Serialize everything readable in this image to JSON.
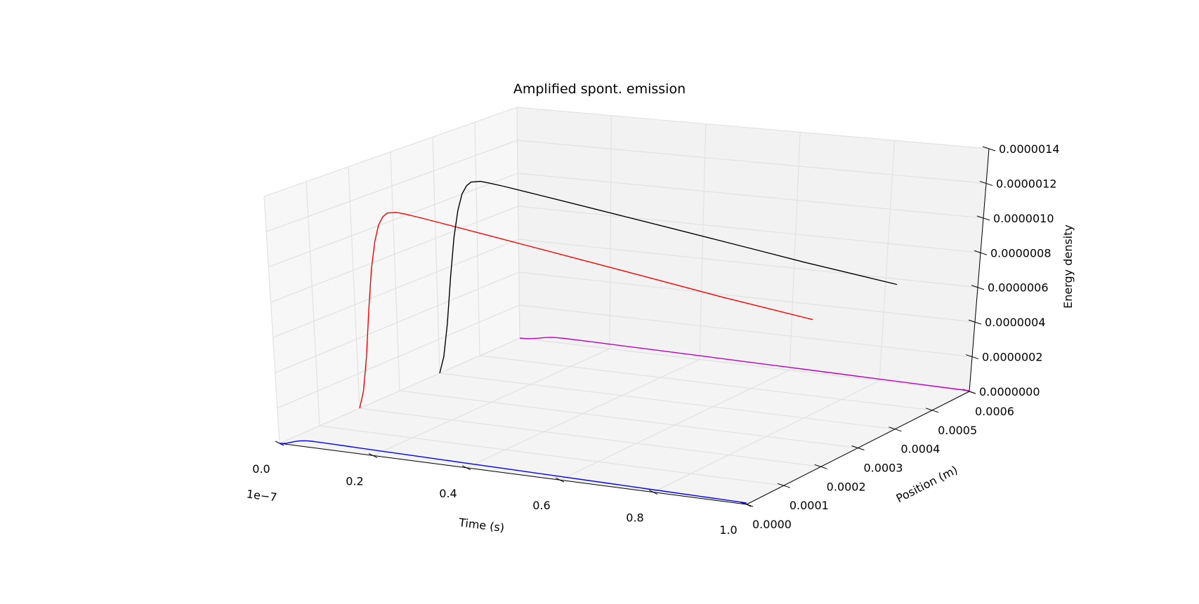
{
  "chart_data": {
    "type": "line",
    "projection": "3d",
    "title": "Amplified spont. emission",
    "xlabel": "Time (s)",
    "ylabel": "Position (m)",
    "zlabel": "Energy density",
    "x_offset_label": "1e−7",
    "x_ticks": [
      "0.0",
      "0.2",
      "0.4",
      "0.6",
      "0.8",
      "1.0"
    ],
    "y_ticks": [
      "0.0000",
      "0.0001",
      "0.0002",
      "0.0003",
      "0.0004",
      "0.0005",
      "0.0006"
    ],
    "z_ticks": [
      "0.0000000",
      "0.0000002",
      "0.0000004",
      "0.0000006",
      "0.0000008",
      "0.0000010",
      "0.0000012",
      "0.0000014"
    ],
    "xlim": [
      0,
      1e-07
    ],
    "ylim": [
      0,
      0.0006
    ],
    "zlim": [
      0,
      1.4e-06
    ],
    "grid": true,
    "series": [
      {
        "color": "#0000ff",
        "y": 0.0,
        "x": [
          0,
          5e-10,
          1e-09,
          1.5e-09,
          2e-09,
          3e-09,
          4e-09,
          5e-09,
          6e-09,
          7e-09,
          8e-09,
          1e-08,
          1.5e-08,
          2e-08,
          3e-08,
          4e-08,
          5e-08,
          6e-08,
          7e-08,
          8e-08,
          9e-08,
          1e-07
        ],
        "z": [
          0.0,
          1e-09,
          3e-09,
          6e-09,
          1e-08,
          1.9e-08,
          2.7e-08,
          3.2e-08,
          3.5e-08,
          3.6e-08,
          3.6e-08,
          3.55e-08,
          3.4e-08,
          3.2e-08,
          2.9e-08,
          2.6e-08,
          2.3e-08,
          2e-08,
          1.7e-08,
          1.4e-08,
          1.1e-08,
          8e-09
        ]
      },
      {
        "color": "#ff0000",
        "y": 0.0002,
        "x": [
          0,
          1e-09,
          2e-09,
          3e-09,
          4e-09,
          5e-09,
          6e-09,
          7e-09,
          8e-09,
          1e-08,
          1.2e-08,
          1.5e-08,
          2e-08,
          3e-08,
          4e-08,
          5e-08,
          6e-08,
          7e-08,
          8e-08,
          9e-08,
          1e-07
        ],
        "z": [
          0.0,
          1e-07,
          3e-07,
          5.8e-07,
          8.2e-07,
          9.8e-07,
          1.08e-06,
          1.13e-06,
          1.155e-06,
          1.165e-06,
          1.16e-06,
          1.15e-06,
          1.13e-06,
          1.09e-06,
          1.05e-06,
          1.01e-06,
          9.7e-07,
          9.3e-07,
          8.9e-07,
          8.55e-07,
          8.2e-07
        ]
      },
      {
        "color": "#000000",
        "y": 0.0004,
        "x": [
          0,
          1e-09,
          2e-09,
          3e-09,
          4e-09,
          5e-09,
          6e-09,
          7e-09,
          8e-09,
          1e-08,
          1.2e-08,
          1.5e-08,
          2e-08,
          3e-08,
          4e-08,
          5e-08,
          6e-08,
          7e-08,
          8e-08,
          9e-08,
          1e-07
        ],
        "z": [
          0.0,
          1e-07,
          3e-07,
          5.8e-07,
          8.2e-07,
          9.8e-07,
          1.08e-06,
          1.13e-06,
          1.155e-06,
          1.165e-06,
          1.16e-06,
          1.15e-06,
          1.13e-06,
          1.09e-06,
          1.05e-06,
          1.01e-06,
          9.7e-07,
          9.3e-07,
          8.9e-07,
          8.55e-07,
          8.2e-07
        ]
      },
      {
        "color": "#bf00bf",
        "y": 0.0006,
        "x": [
          0,
          1e-09,
          2e-09,
          3e-09,
          4e-09,
          5e-09,
          6e-09,
          7e-09,
          8e-09,
          1e-08,
          1.5e-08,
          2e-08,
          3e-08,
          4e-08,
          5e-08,
          6e-08,
          7e-08,
          8e-08,
          9e-08,
          1e-07
        ],
        "z": [
          0.0,
          1e-09,
          3e-09,
          7e-09,
          1.2e-08,
          1.8e-08,
          2.3e-08,
          2.7e-08,
          2.9e-08,
          3e-08,
          2.95e-08,
          2.8e-08,
          2.5e-08,
          2.2e-08,
          1.9e-08,
          1.6e-08,
          1.3e-08,
          1e-08,
          7e-09,
          4e-09
        ]
      }
    ]
  }
}
